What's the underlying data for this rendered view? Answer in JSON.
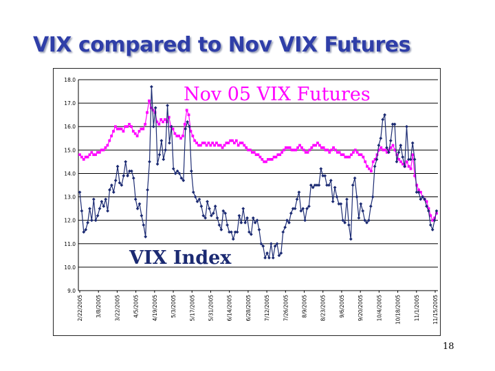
{
  "slide": {
    "title": "VIX compared to Nov VIX Futures",
    "page_number": "18"
  },
  "chart_data": {
    "type": "line",
    "title": "",
    "xlabel": "",
    "ylabel": "",
    "ylim": [
      9.0,
      18.0
    ],
    "yticks": [
      "9.0",
      "10.0",
      "11.0",
      "12.0",
      "13.0",
      "14.0",
      "15.0",
      "16.0",
      "17.0",
      "18.0"
    ],
    "grid": true,
    "x_tick_labels": [
      "2/22/2005",
      "3/8/2005",
      "3/22/2005",
      "4/5/2005",
      "4/19/2005",
      "5/3/2005",
      "5/17/2005",
      "5/31/2005",
      "6/14/2005",
      "6/28/2005",
      "7/12/2005",
      "7/26/2005",
      "8/9/2005",
      "8/23/2005",
      "9/6/2005",
      "9/20/2005",
      "10/4/2005",
      "10/18/2005",
      "11/1/2005",
      "11/15/2005"
    ],
    "series": [
      {
        "name": "VIX Index",
        "label": "VIX Index",
        "color": "#1b2a72",
        "marker": "diamond",
        "values": [
          13.2,
          12.4,
          11.5,
          11.6,
          11.9,
          12.5,
          12.0,
          12.9,
          12.0,
          12.2,
          12.5,
          12.8,
          12.6,
          12.9,
          12.4,
          13.3,
          13.5,
          13.2,
          13.7,
          14.3,
          13.6,
          13.5,
          13.9,
          14.5,
          13.9,
          14.1,
          14.1,
          13.8,
          12.9,
          12.5,
          12.7,
          12.2,
          11.8,
          11.3,
          13.3,
          14.5,
          17.7,
          16.0,
          16.8,
          14.4,
          14.8,
          15.4,
          14.6,
          15.0,
          16.9,
          15.3,
          16.0,
          14.2,
          14.0,
          14.1,
          14.0,
          13.8,
          13.7,
          15.9,
          16.2,
          16.0,
          14.1,
          13.2,
          13.0,
          12.8,
          12.9,
          12.6,
          12.2,
          12.1,
          12.8,
          12.5,
          12.2,
          12.3,
          12.6,
          12.1,
          11.8,
          11.6,
          12.4,
          12.3,
          11.8,
          11.5,
          11.5,
          11.2,
          11.5,
          11.5,
          12.2,
          11.9,
          12.5,
          11.9,
          12.1,
          11.5,
          11.4,
          12.1,
          11.9,
          12.0,
          11.6,
          11.0,
          10.9,
          10.4,
          10.6,
          10.4,
          11.0,
          10.4,
          10.9,
          11.0,
          10.5,
          10.6,
          11.5,
          11.7,
          12.0,
          11.9,
          12.3,
          12.5,
          12.5,
          12.9,
          13.2,
          12.4,
          12.5,
          12.0,
          12.5,
          12.6,
          13.5,
          13.4,
          13.5,
          13.5,
          13.5,
          14.2,
          13.9,
          13.9,
          13.5,
          13.5,
          13.7,
          12.8,
          13.4,
          13.0,
          12.7,
          12.7,
          12.0,
          11.9,
          12.9,
          11.8,
          11.2,
          13.5,
          13.8,
          13.0,
          12.1,
          12.7,
          12.4,
          12.0,
          11.9,
          12.0,
          12.6,
          13.0,
          14.3,
          14.6,
          15.2,
          15.5,
          16.3,
          16.5,
          15.1,
          14.9,
          15.4,
          16.1,
          16.1,
          14.5,
          14.9,
          15.2,
          14.7,
          14.3,
          16.0,
          14.6,
          14.6,
          15.3,
          14.6,
          13.2,
          13.2,
          12.9,
          13.0,
          12.9,
          12.6,
          12.4,
          11.8,
          11.6,
          12.0,
          12.4
        ]
      },
      {
        "name": "Nov 05 VIX Futures",
        "label": "Nov 05 VIX Futures",
        "color": "#ff00ff",
        "marker": "square",
        "values": [
          14.8,
          14.7,
          14.6,
          14.7,
          14.7,
          14.8,
          14.9,
          14.8,
          14.8,
          14.9,
          14.9,
          15.0,
          15.0,
          15.1,
          15.2,
          15.4,
          15.6,
          15.8,
          16.0,
          15.9,
          15.9,
          15.9,
          15.8,
          16.0,
          16.0,
          16.1,
          16.0,
          15.8,
          15.7,
          15.6,
          15.8,
          15.9,
          15.9,
          16.1,
          16.6,
          17.1,
          16.8,
          16.7,
          16.6,
          16.2,
          16.1,
          16.3,
          16.2,
          16.3,
          16.2,
          16.4,
          16.0,
          15.9,
          15.7,
          15.6,
          15.6,
          15.5,
          15.6,
          16.1,
          16.7,
          16.5,
          15.8,
          15.6,
          15.4,
          15.3,
          15.2,
          15.2,
          15.3,
          15.3,
          15.2,
          15.3,
          15.2,
          15.3,
          15.2,
          15.3,
          15.2,
          15.2,
          15.1,
          15.2,
          15.3,
          15.3,
          15.4,
          15.4,
          15.3,
          15.4,
          15.2,
          15.3,
          15.3,
          15.2,
          15.1,
          15.0,
          15.0,
          14.9,
          14.9,
          14.8,
          14.8,
          14.7,
          14.6,
          14.5,
          14.5,
          14.6,
          14.6,
          14.6,
          14.7,
          14.7,
          14.8,
          14.8,
          14.9,
          15.0,
          15.1,
          15.1,
          15.1,
          15.0,
          15.0,
          15.0,
          15.1,
          15.2,
          15.1,
          15.0,
          14.9,
          14.9,
          15.0,
          15.1,
          15.2,
          15.2,
          15.3,
          15.2,
          15.1,
          15.1,
          15.0,
          15.0,
          14.9,
          15.0,
          15.1,
          15.0,
          14.9,
          14.9,
          14.8,
          14.8,
          14.7,
          14.7,
          14.7,
          14.8,
          14.9,
          15.0,
          14.9,
          14.8,
          14.8,
          14.7,
          14.5,
          14.3,
          14.2,
          14.1,
          14.5,
          14.6,
          14.8,
          15.0,
          15.1,
          15.0,
          15.0,
          14.9,
          15.0,
          15.1,
          15.2,
          15.0,
          14.8,
          14.6,
          14.5,
          14.4,
          14.3,
          14.5,
          14.3,
          14.2,
          14.8,
          13.9,
          13.5,
          13.3,
          13.2,
          13.0,
          12.9,
          12.8,
          12.5,
          12.2,
          12.0,
          12.1,
          12.3
        ]
      }
    ]
  }
}
